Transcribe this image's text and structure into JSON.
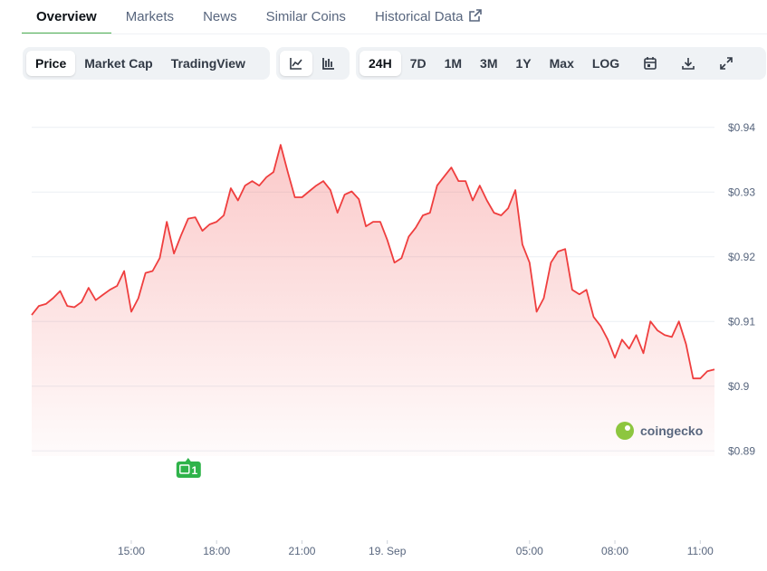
{
  "nav": {
    "tabs": [
      "Overview",
      "Markets",
      "News",
      "Similar Coins",
      "Historical Data"
    ],
    "active": 0
  },
  "toolbar": {
    "metrics": [
      "Price",
      "Market Cap",
      "TradingView"
    ],
    "metric_active": 0,
    "ranges": [
      "24H",
      "7D",
      "1M",
      "3M",
      "1Y",
      "Max",
      "LOG"
    ],
    "range_active": 0
  },
  "watermark": "coingecko",
  "chart_data": {
    "type": "line",
    "color": "#ef3e3e",
    "x": [
      11.5,
      11.75,
      12,
      12.25,
      12.5,
      12.75,
      13,
      13.25,
      13.5,
      13.75,
      14,
      14.25,
      14.5,
      14.75,
      15,
      15.25,
      15.5,
      15.75,
      16,
      16.25,
      16.5,
      16.75,
      17,
      17.25,
      17.5,
      17.75,
      18,
      18.25,
      18.5,
      18.75,
      19,
      19.25,
      19.5,
      19.75,
      20,
      20.25,
      20.5,
      20.75,
      21,
      21.25,
      21.5,
      21.75,
      22,
      22.25,
      22.5,
      22.75,
      23,
      23.25,
      23.5,
      23.75,
      24,
      24.25,
      24.5,
      24.75,
      25,
      25.25,
      25.5,
      25.75,
      26,
      26.25,
      26.5,
      26.75,
      27,
      27.25,
      27.5,
      27.75,
      28,
      28.25,
      28.5,
      28.75,
      29,
      29.25,
      29.5,
      29.75,
      30,
      30.25,
      30.5,
      30.75,
      31,
      31.25,
      31.5,
      31.75,
      32,
      32.25,
      32.5,
      32.75,
      33,
      33.25,
      33.5,
      33.75,
      34,
      34.25,
      34.5,
      34.75,
      35,
      35.25,
      35.5
    ],
    "values": [
      0.911,
      0.9124,
      0.9127,
      0.9136,
      0.9147,
      0.9124,
      0.9122,
      0.913,
      0.9152,
      0.9133,
      0.9141,
      0.9149,
      0.9155,
      0.9178,
      0.9115,
      0.9136,
      0.9175,
      0.9178,
      0.9198,
      0.9254,
      0.9205,
      0.9233,
      0.9259,
      0.9261,
      0.924,
      0.925,
      0.9254,
      0.9264,
      0.9306,
      0.9287,
      0.931,
      0.9317,
      0.931,
      0.9323,
      0.9331,
      0.9373,
      0.9331,
      0.9292,
      0.9292,
      0.9301,
      0.931,
      0.9317,
      0.9303,
      0.9268,
      0.9296,
      0.9301,
      0.9289,
      0.9247,
      0.9254,
      0.9254,
      0.9226,
      0.9191,
      0.9198,
      0.9231,
      0.9245,
      0.9264,
      0.9268,
      0.931,
      0.9324,
      0.9338,
      0.9317,
      0.9317,
      0.9287,
      0.931,
      0.9287,
      0.9268,
      0.9264,
      0.9275,
      0.9303,
      0.9219,
      0.9191,
      0.9115,
      0.9136,
      0.9191,
      0.9208,
      0.9212,
      0.9149,
      0.9142,
      0.9149,
      0.9107,
      0.9093,
      0.9072,
      0.9044,
      0.9072,
      0.9058,
      0.9079,
      0.9051,
      0.91,
      0.9086,
      0.9079,
      0.9076,
      0.91,
      0.9065,
      0.9012,
      0.9012,
      0.9023,
      0.9026
    ],
    "xlim": [
      11.5,
      35.5
    ],
    "xticks": [
      {
        "value": 15,
        "label": "15:00"
      },
      {
        "value": 18,
        "label": "18:00"
      },
      {
        "value": 21,
        "label": "21:00"
      },
      {
        "value": 24,
        "label": "19. Sep"
      },
      {
        "value": 29,
        "label": "05:00"
      },
      {
        "value": 32,
        "label": "08:00"
      },
      {
        "value": 35,
        "label": "11:00"
      }
    ],
    "ylim": [
      0.885,
      0.945
    ],
    "yticks": [
      {
        "value": 0.94,
        "label": "$0.94"
      },
      {
        "value": 0.93,
        "label": "$0.93"
      },
      {
        "value": 0.92,
        "label": "$0.92"
      },
      {
        "value": 0.91,
        "label": "$0.91"
      },
      {
        "value": 0.9,
        "label": "$0.9"
      },
      {
        "value": 0.89,
        "label": "$0.89"
      }
    ],
    "grid": true,
    "event": {
      "x": 17,
      "label": "1"
    }
  }
}
